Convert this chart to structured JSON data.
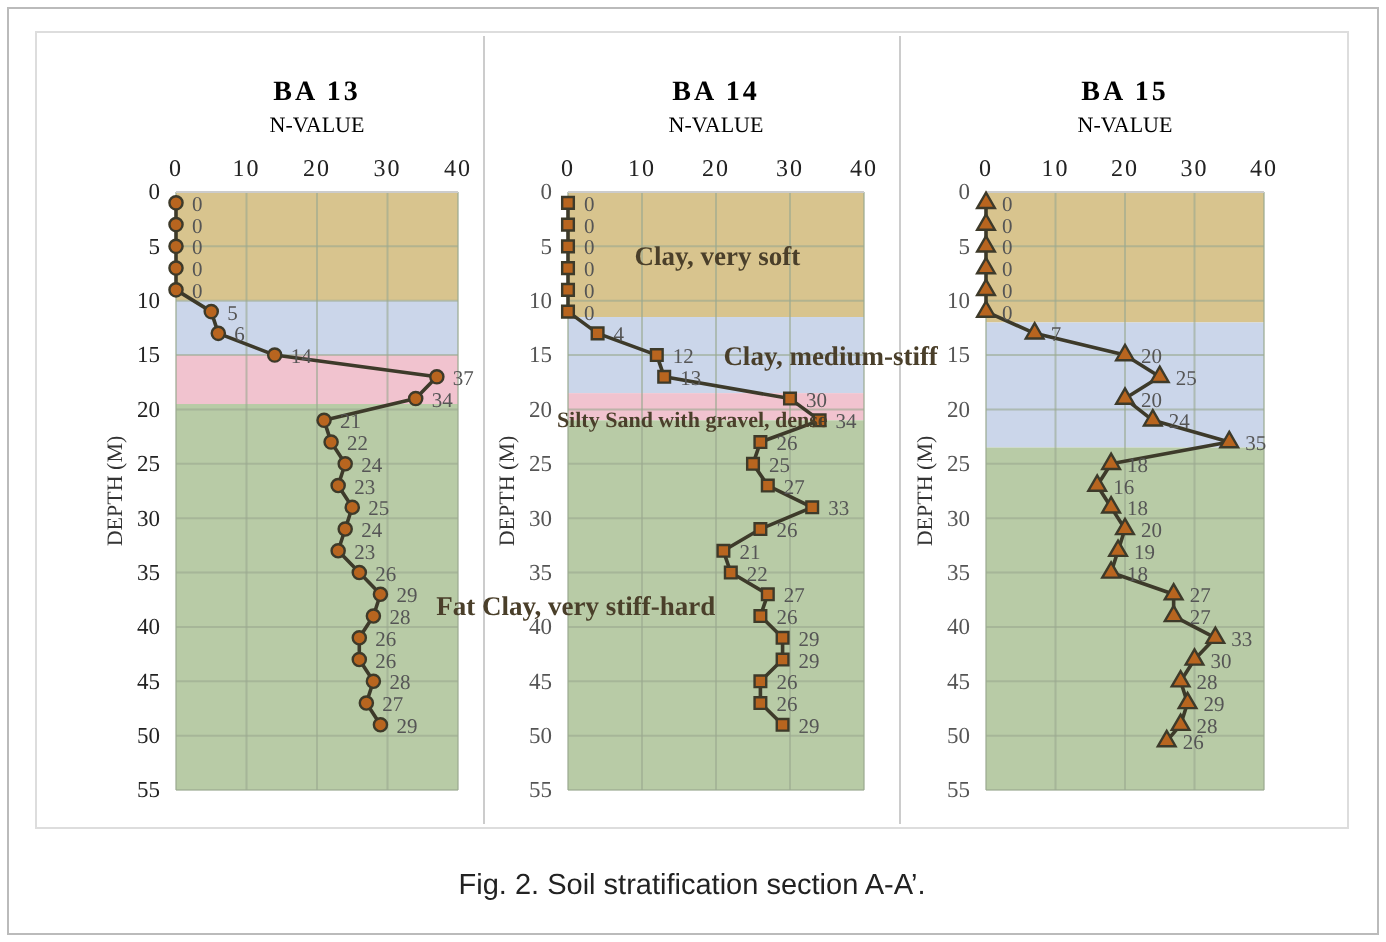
{
  "chart_data": [
    {
      "type": "line",
      "title": "BA 13",
      "xlabel": "N-VALUE",
      "ylabel": "DEPTH (M)",
      "xlim": [
        0,
        40
      ],
      "xticks": [
        0,
        10,
        20,
        30,
        40
      ],
      "ylim": [
        55,
        0
      ],
      "yticks": [
        0,
        5,
        10,
        15,
        20,
        25,
        30,
        35,
        40,
        45,
        50,
        55
      ],
      "grid": true,
      "marker": "circle",
      "line_style": "solid",
      "bands": [
        {
          "axis": "y",
          "from": 0,
          "to": 10,
          "color": "#d8c48e"
        },
        {
          "axis": "y",
          "from": 10,
          "to": 15,
          "color": "#cbd6ea"
        },
        {
          "axis": "y",
          "from": 15,
          "to": 19.5,
          "color": "#f1c3cf"
        },
        {
          "axis": "y",
          "from": 19.5,
          "to": 55,
          "color": "#b8cba6"
        }
      ],
      "orientation": "horizontal",
      "series": [
        {
          "color": "#3d3a2a",
          "values": [
            0,
            0,
            0,
            0,
            0,
            5,
            6,
            14,
            37,
            34,
            21,
            22,
            24,
            23,
            25,
            24,
            23,
            26,
            29,
            28,
            26,
            26,
            28,
            27,
            29
          ],
          "x": [
            1,
            3,
            5,
            7,
            9,
            11,
            13,
            15,
            17,
            19,
            21,
            23,
            25,
            27,
            29,
            31,
            33,
            35,
            37,
            39,
            41,
            43,
            45,
            47,
            49
          ],
          "value_labels": [
            "0",
            "0",
            "0",
            "0",
            "0",
            "5",
            "6",
            "14",
            "37",
            "34",
            "21",
            "22",
            "24",
            "23",
            "25",
            "24",
            "23",
            "26",
            "29",
            "28",
            "26",
            "26",
            "28",
            "27",
            "29"
          ]
        }
      ]
    },
    {
      "type": "line",
      "title": "BA 14",
      "xlabel": "N-VALUE",
      "ylabel": "DEPTH (M)",
      "xlim": [
        0,
        40
      ],
      "xticks": [
        0,
        10,
        20,
        30,
        40
      ],
      "ylim": [
        55,
        0
      ],
      "yticks": [
        0,
        5,
        10,
        15,
        20,
        25,
        30,
        35,
        40,
        45,
        50,
        55
      ],
      "grid": true,
      "marker": "square",
      "line_style": "solid",
      "bands": [
        {
          "axis": "y",
          "from": 0,
          "to": 11.5,
          "color": "#d8c48e",
          "label": "Clay, very soft"
        },
        {
          "axis": "y",
          "from": 11.5,
          "to": 18.5,
          "color": "#cbd6ea",
          "label": "Clay, medium-stiff"
        },
        {
          "axis": "y",
          "from": 18.5,
          "to": 21,
          "color": "#f1c3cf",
          "label": "Silty Sand with gravel, dense"
        },
        {
          "axis": "y",
          "from": 21,
          "to": 55,
          "color": "#b8cba6",
          "label": "Fat Clay, very stiff-hard"
        }
      ],
      "annotations": [
        "Fig. 2. Soil stratification section A-A’."
      ],
      "orientation": "horizontal",
      "series": [
        {
          "color": "#3d3a2a",
          "values": [
            0,
            0,
            0,
            0,
            0,
            0,
            4,
            12,
            13,
            30,
            34,
            26,
            25,
            27,
            33,
            26,
            21,
            22,
            27,
            26,
            29,
            29,
            26,
            26,
            29
          ],
          "x": [
            1,
            3,
            5,
            7,
            9,
            11,
            13,
            15,
            17,
            19,
            21,
            23,
            25,
            27,
            29,
            31,
            33,
            35,
            37,
            39,
            41,
            43,
            45,
            47,
            49
          ],
          "value_labels": [
            "0",
            "0",
            "0",
            "0",
            "0",
            "0",
            "4",
            "12",
            "13",
            "30",
            "34",
            "26",
            "25",
            "27",
            "33",
            "26",
            "21",
            "22",
            "27",
            "26",
            "29",
            "29",
            "26",
            "26",
            "29"
          ]
        }
      ]
    },
    {
      "type": "line",
      "title": "BA 15",
      "xlabel": "N-VALUE",
      "ylabel": "DEPTH (M)",
      "xlim": [
        0,
        40
      ],
      "xticks": [
        0,
        10,
        20,
        30,
        40
      ],
      "ylim": [
        55,
        0
      ],
      "yticks": [
        0,
        5,
        10,
        15,
        20,
        25,
        30,
        35,
        40,
        45,
        50,
        55
      ],
      "grid": true,
      "marker": "triangle",
      "line_style": "solid",
      "bands": [
        {
          "axis": "y",
          "from": 0,
          "to": 12,
          "color": "#d8c48e"
        },
        {
          "axis": "y",
          "from": 12,
          "to": 23.5,
          "color": "#cbd6ea"
        },
        {
          "axis": "y",
          "from": 23.5,
          "to": 55,
          "color": "#b8cba6"
        }
      ],
      "orientation": "horizontal",
      "series": [
        {
          "color": "#3d3a2a",
          "values": [
            0,
            0,
            0,
            0,
            0,
            0,
            7,
            20,
            25,
            20,
            24,
            35,
            18,
            16,
            18,
            20,
            19,
            18,
            27,
            27,
            33,
            30,
            28,
            29,
            28,
            26
          ],
          "x": [
            1,
            3,
            5,
            7,
            9,
            11,
            13,
            15,
            17,
            19,
            21,
            23,
            25,
            27,
            29,
            31,
            33,
            35,
            37,
            39,
            41,
            43,
            45,
            47,
            49,
            50.5
          ],
          "value_labels": [
            "0",
            "0",
            "0",
            "0",
            "0",
            "0",
            "7",
            "20",
            "25",
            "20",
            "24",
            "35",
            "18",
            "16",
            "18",
            "20",
            "19",
            "18",
            "27",
            "27",
            "33",
            "30",
            "28",
            "29",
            "28",
            "26"
          ]
        }
      ]
    }
  ]
}
